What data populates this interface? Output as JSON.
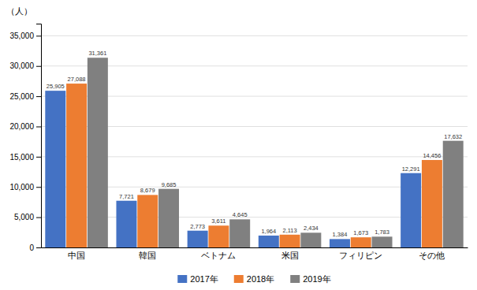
{
  "chart_data": {
    "type": "bar",
    "ylabel": "（人）",
    "categories": [
      "中国",
      "韓国",
      "ベトナム",
      "米国",
      "フィリピン",
      "その他"
    ],
    "series": [
      {
        "name": "2017年",
        "color": "#4472C4",
        "values": [
          25905,
          7721,
          2773,
          1964,
          1384,
          12291
        ],
        "value_labels": [
          "25,905",
          "7,721",
          "2,773",
          "1,964",
          "1,384",
          "12,291"
        ]
      },
      {
        "name": "2018年",
        "color": "#ED7D31",
        "values": [
          27088,
          8679,
          3611,
          2113,
          1673,
          14456
        ],
        "value_labels": [
          "27,088",
          "8,679",
          "3,611",
          "2,113",
          "1,673",
          "14,456"
        ]
      },
      {
        "name": "2019年",
        "color": "#808080",
        "values": [
          31361,
          9685,
          4645,
          2434,
          1783,
          17632
        ],
        "value_labels": [
          "31,361",
          "9,685",
          "4,645",
          "2,434",
          "1,783",
          "17,632"
        ]
      }
    ],
    "ylim": [
      0,
      37000
    ],
    "yticks": [
      0,
      {
        "value": 5000,
        "label": "5,000"
      },
      {
        "value": 10000,
        "label": "10,000"
      },
      {
        "value": 15000,
        "label": "15,000"
      },
      {
        "value": 20000,
        "label": "20,000"
      },
      {
        "value": 25000,
        "label": "25,000"
      },
      {
        "value": 30000,
        "label": "30,000"
      },
      {
        "value": 35000,
        "label": "35,000"
      }
    ],
    "grid": true,
    "legend": "bottom",
    "data_labels": true
  }
}
